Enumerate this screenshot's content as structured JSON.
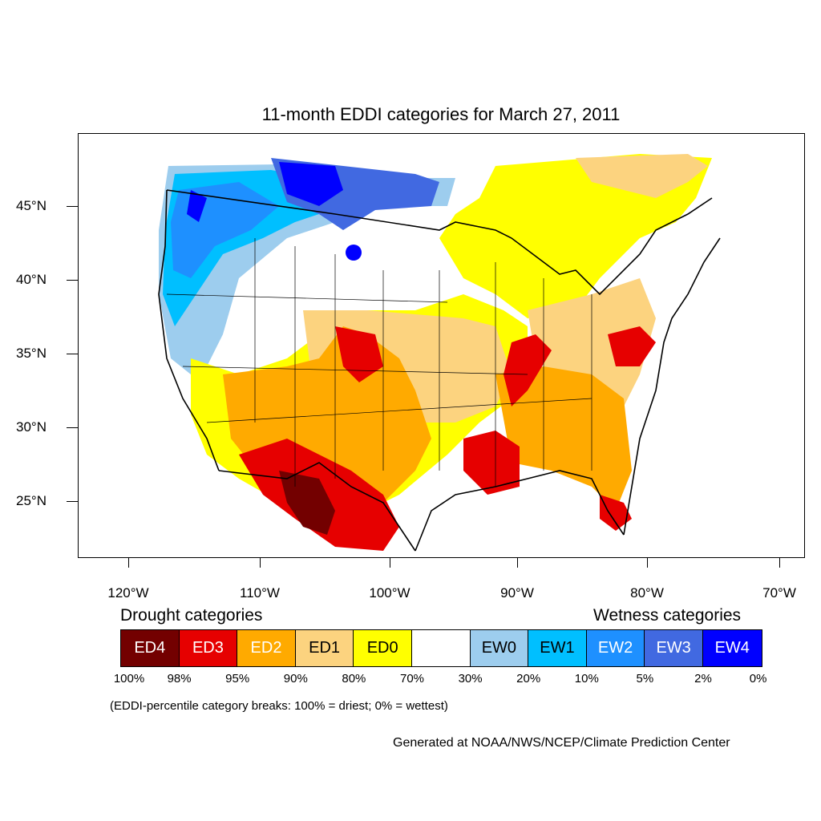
{
  "title": "11-month EDDI categories for March 27, 2011",
  "lat_labels": [
    "45°N",
    "40°N",
    "35°N",
    "30°N",
    "25°N"
  ],
  "lon_labels": [
    "120°W",
    "110°W",
    "100°W",
    "90°W",
    "80°W",
    "70°W"
  ],
  "legend": {
    "drought_heading": "Drought categories",
    "wetness_heading": "Wetness categories",
    "categories": [
      {
        "label": "ED4",
        "color": "#730000",
        "text_color": "#ffffff"
      },
      {
        "label": "ED3",
        "color": "#e60000",
        "text_color": "#ffffff"
      },
      {
        "label": "ED2",
        "color": "#ffaa00",
        "text_color": "#ffffff"
      },
      {
        "label": "ED1",
        "color": "#fcd37f",
        "text_color": "#000000"
      },
      {
        "label": "ED0",
        "color": "#ffff00",
        "text_color": "#000000"
      },
      {
        "label": "",
        "color": "#ffffff",
        "text_color": "#000000"
      },
      {
        "label": "EW0",
        "color": "#9dcdee",
        "text_color": "#000000"
      },
      {
        "label": "EW1",
        "color": "#00bfff",
        "text_color": "#000000"
      },
      {
        "label": "EW2",
        "color": "#1e90ff",
        "text_color": "#ffffff"
      },
      {
        "label": "EW3",
        "color": "#4169e1",
        "text_color": "#ffffff"
      },
      {
        "label": "EW4",
        "color": "#0000ff",
        "text_color": "#ffffff"
      }
    ],
    "percentiles": [
      "100%",
      "98%",
      "95%",
      "90%",
      "80%",
      "70%",
      "30%",
      "20%",
      "10%",
      "5%",
      "2%",
      "0%"
    ]
  },
  "note": "(EDDI-percentile category breaks: 100% = driest; 0% = wettest)",
  "credit": "Generated at NOAA/NWS/NCEP/Climate Prediction Center"
}
